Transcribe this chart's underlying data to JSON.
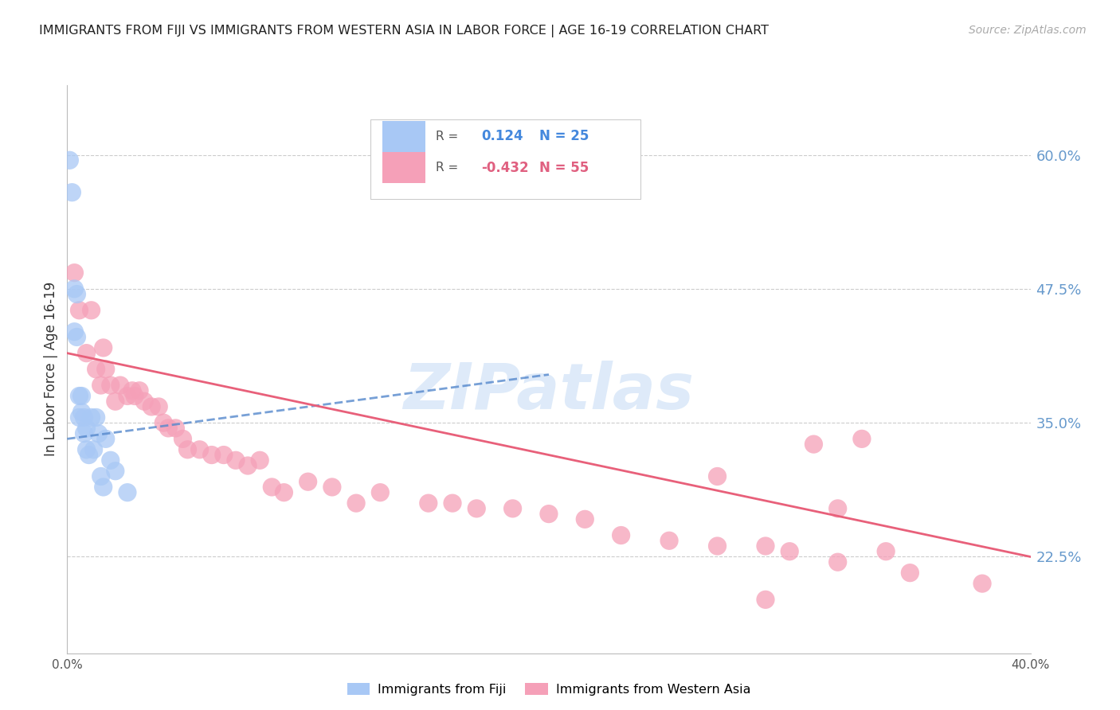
{
  "title": "IMMIGRANTS FROM FIJI VS IMMIGRANTS FROM WESTERN ASIA IN LABOR FORCE | AGE 16-19 CORRELATION CHART",
  "source": "Source: ZipAtlas.com",
  "ylabel": "In Labor Force | Age 16-19",
  "yticks_right": [
    0.225,
    0.35,
    0.475,
    0.6
  ],
  "ytick_labels_right": [
    "22.5%",
    "35.0%",
    "47.5%",
    "60.0%"
  ],
  "xlim": [
    0.0,
    0.4
  ],
  "ylim": [
    0.135,
    0.665
  ],
  "fiji_R": 0.124,
  "fiji_N": 25,
  "western_asia_R": -0.432,
  "western_asia_N": 55,
  "fiji_color": "#a8c8f5",
  "western_asia_color": "#f5a0b8",
  "fiji_line_color": "#5588cc",
  "western_asia_line_color": "#e8607a",
  "background_color": "#ffffff",
  "watermark": "ZIPatlas",
  "watermark_color": "#c8ddf5",
  "fiji_x": [
    0.001,
    0.002,
    0.003,
    0.003,
    0.004,
    0.004,
    0.005,
    0.005,
    0.006,
    0.006,
    0.007,
    0.007,
    0.008,
    0.008,
    0.009,
    0.01,
    0.011,
    0.012,
    0.013,
    0.014,
    0.015,
    0.016,
    0.018,
    0.02,
    0.025
  ],
  "fiji_y": [
    0.595,
    0.565,
    0.475,
    0.435,
    0.47,
    0.43,
    0.375,
    0.355,
    0.375,
    0.36,
    0.355,
    0.34,
    0.345,
    0.325,
    0.32,
    0.355,
    0.325,
    0.355,
    0.34,
    0.3,
    0.29,
    0.335,
    0.315,
    0.305,
    0.285
  ],
  "western_asia_x": [
    0.003,
    0.005,
    0.008,
    0.01,
    0.012,
    0.014,
    0.015,
    0.016,
    0.018,
    0.02,
    0.022,
    0.025,
    0.027,
    0.028,
    0.03,
    0.032,
    0.035,
    0.038,
    0.04,
    0.042,
    0.045,
    0.048,
    0.05,
    0.055,
    0.06,
    0.065,
    0.07,
    0.075,
    0.08,
    0.085,
    0.09,
    0.1,
    0.11,
    0.12,
    0.13,
    0.15,
    0.16,
    0.17,
    0.185,
    0.2,
    0.215,
    0.23,
    0.25,
    0.27,
    0.29,
    0.3,
    0.32,
    0.34,
    0.31,
    0.33,
    0.35,
    0.38,
    0.27,
    0.32,
    0.29
  ],
  "western_asia_y": [
    0.49,
    0.455,
    0.415,
    0.455,
    0.4,
    0.385,
    0.42,
    0.4,
    0.385,
    0.37,
    0.385,
    0.375,
    0.38,
    0.375,
    0.38,
    0.37,
    0.365,
    0.365,
    0.35,
    0.345,
    0.345,
    0.335,
    0.325,
    0.325,
    0.32,
    0.32,
    0.315,
    0.31,
    0.315,
    0.29,
    0.285,
    0.295,
    0.29,
    0.275,
    0.285,
    0.275,
    0.275,
    0.27,
    0.27,
    0.265,
    0.26,
    0.245,
    0.24,
    0.235,
    0.235,
    0.23,
    0.22,
    0.23,
    0.33,
    0.335,
    0.21,
    0.2,
    0.3,
    0.27,
    0.185
  ],
  "fiji_trendline_x": [
    0.0,
    0.2
  ],
  "fiji_trendline_y": [
    0.335,
    0.395
  ],
  "western_trendline_x": [
    0.0,
    0.4
  ],
  "western_trendline_y": [
    0.415,
    0.225
  ]
}
